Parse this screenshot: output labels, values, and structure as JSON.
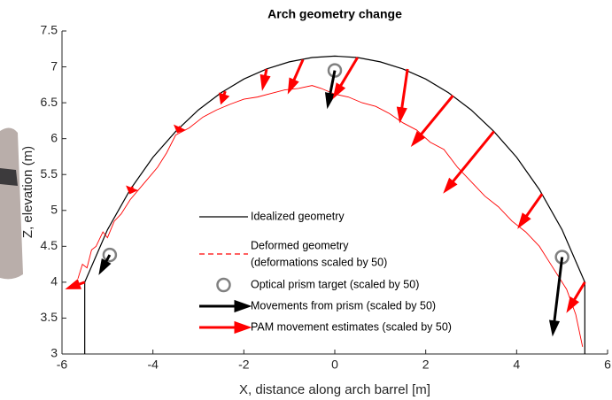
{
  "chart_data": {
    "type": "line",
    "title": "Arch geometry change",
    "x_label": "X, distance along arch barrel [m]",
    "y_label": "Z, elevation (m)",
    "xlim": [
      -6,
      6
    ],
    "ylim": [
      3,
      7.5
    ],
    "xticks": [
      -6,
      -4,
      -2,
      0,
      2,
      4,
      6
    ],
    "yticks": [
      3,
      3.5,
      4,
      4.5,
      5,
      5.5,
      6,
      6.5,
      7,
      7.5
    ],
    "grid": false,
    "series": [
      {
        "name": "Idealized geometry",
        "kind": "line",
        "color": "#000000",
        "x": [
          -5.5,
          -5.5,
          -5,
          -4.5,
          -4,
          -3.5,
          -3,
          -2.5,
          -2,
          -1.5,
          -1,
          -0.5,
          0,
          0.5,
          1,
          1.5,
          2,
          2.5,
          3,
          3.5,
          4,
          4.5,
          5,
          5.5,
          5.5
        ],
        "y": [
          3,
          4,
          4.73,
          5.29,
          5.74,
          6.1,
          6.4,
          6.64,
          6.83,
          6.97,
          7.07,
          7.13,
          7.15,
          7.13,
          7.07,
          6.97,
          6.83,
          6.64,
          6.4,
          6.1,
          5.74,
          5.29,
          4.73,
          4,
          3
        ]
      },
      {
        "name": "Deformed geometry",
        "note": "(deformations scaled by 50)",
        "kind": "line",
        "color": "#ff0000",
        "x": [
          -5.65,
          -5.55,
          -5.45,
          -5.35,
          -5.25,
          -5.1,
          -5,
          -4.85,
          -4.7,
          -4.5,
          -4.3,
          -4.1,
          -3.9,
          -3.7,
          -3.5,
          -3.2,
          -2.9,
          -2.6,
          -2.3,
          -2,
          -1.7,
          -1.4,
          -1.1,
          -0.8,
          -0.5,
          -0.3,
          0,
          0.3,
          0.6,
          0.9,
          1.2,
          1.5,
          1.8,
          2.1,
          2.4,
          2.7,
          3,
          3.3,
          3.6,
          3.9,
          4.2,
          4.5,
          4.7,
          4.9,
          5.1,
          5.3,
          5.45
        ],
        "y": [
          4.05,
          4.25,
          4.2,
          4.45,
          4.5,
          4.7,
          4.62,
          4.85,
          4.95,
          5.15,
          5.3,
          5.45,
          5.6,
          5.8,
          6.05,
          6.15,
          6.3,
          6.4,
          6.48,
          6.55,
          6.58,
          6.63,
          6.68,
          6.7,
          6.74,
          6.7,
          6.62,
          6.58,
          6.5,
          6.45,
          6.35,
          6.22,
          6.12,
          5.95,
          5.85,
          5.6,
          5.4,
          5.2,
          5.05,
          4.85,
          4.7,
          4.5,
          4.3,
          4.1,
          3.9,
          3.55,
          3.1
        ]
      },
      {
        "name": "Optical prism target (scaled by 50)",
        "kind": "marker",
        "color": "#808080",
        "x": [
          -4.95,
          0,
          5
        ],
        "y": [
          4.38,
          6.95,
          4.35
        ]
      },
      {
        "name": "Movements from prism (scaled by 50)",
        "kind": "arrow",
        "color": "#000000",
        "x0": [
          -4.95,
          0,
          5
        ],
        "y0": [
          4.38,
          6.95,
          4.35
        ],
        "x1": [
          -5.15,
          -0.15,
          4.8
        ],
        "y1": [
          4.15,
          6.47,
          3.3
        ]
      },
      {
        "name": "PAM movement estimates (scaled by 50)",
        "kind": "arrow",
        "color": "#ff0000",
        "x0": [
          -5.5,
          -4.45,
          -3.4,
          -2.41,
          -1.5,
          -0.7,
          0.5,
          1.6,
          2.6,
          3.5,
          4.56,
          5.5
        ],
        "y0": [
          4,
          5.33,
          6.17,
          6.66,
          6.97,
          7.1,
          7.13,
          6.97,
          6.6,
          6.1,
          5.23,
          4
        ],
        "x1": [
          -5.85,
          -4.5,
          -3.45,
          -2.49,
          -1.58,
          -1,
          0,
          1.44,
          1.73,
          2.44,
          4.07,
          5.14
        ],
        "y1": [
          3.92,
          5.25,
          6.1,
          6.51,
          6.72,
          6.67,
          6.6,
          6.27,
          5.93,
          5.28,
          4.79,
          3.62
        ]
      }
    ]
  }
}
